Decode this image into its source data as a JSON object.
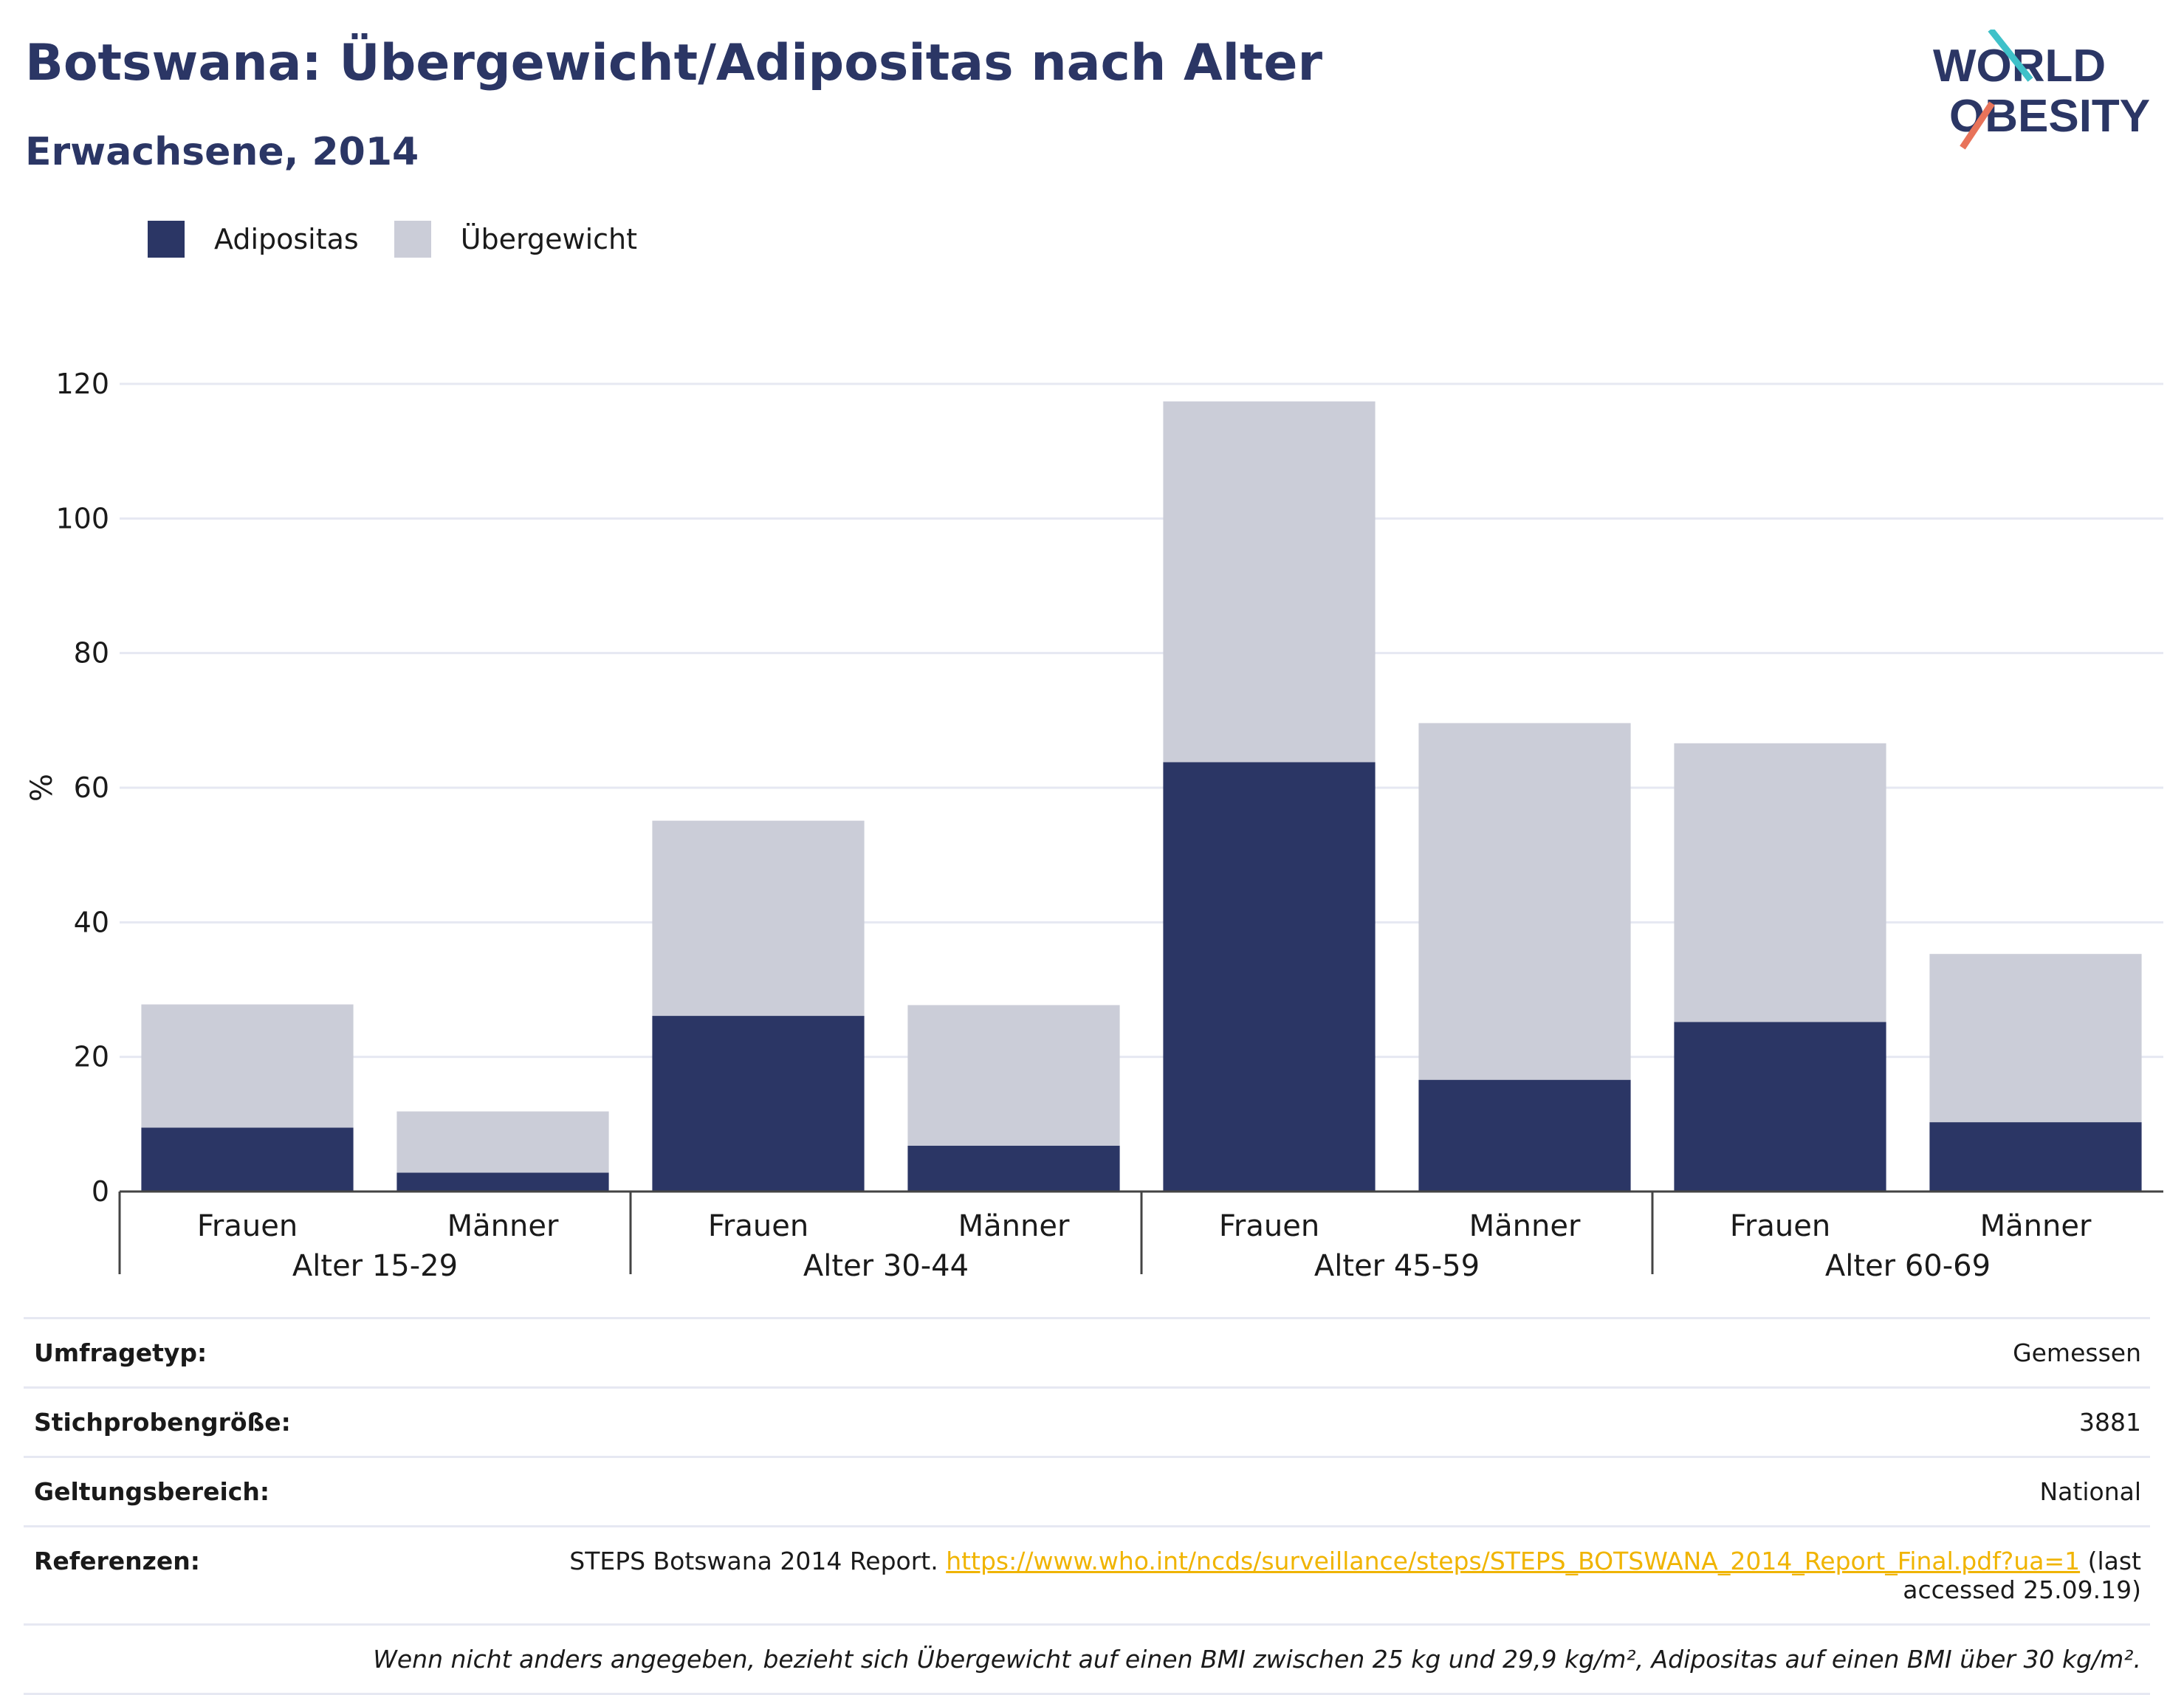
{
  "header": {
    "title": "Botswana: Übergewicht/Adipositas nach Alter",
    "subtitle": "Erwachsene, 2014"
  },
  "logo": {
    "line1": "WORLD",
    "line2": "OBESITY",
    "accent_teal": "#3fc1c9",
    "accent_coral": "#e8735a"
  },
  "legend": [
    {
      "label": "Adipositas",
      "color": "#2b3665"
    },
    {
      "label": "Übergewicht",
      "color": "#cbcdd8"
    }
  ],
  "chart_data": {
    "type": "bar",
    "stacked": true,
    "ylabel": "%",
    "ylim": [
      0,
      120
    ],
    "yticks": [
      0,
      20,
      40,
      60,
      80,
      100,
      120
    ],
    "grid": true,
    "legend_position": "top-left",
    "groups": [
      "Alter 15-29",
      "Alter 30-44",
      "Alter 45-59",
      "Alter 60-69"
    ],
    "categories": [
      "Frauen",
      "Männer",
      "Frauen",
      "Männer",
      "Frauen",
      "Männer",
      "Frauen",
      "Männer"
    ],
    "series": [
      {
        "name": "Adipositas",
        "color": "#2b3665",
        "values": [
          9.5,
          2.8,
          26.1,
          6.8,
          63.8,
          16.6,
          25.2,
          10.3
        ]
      },
      {
        "name": "Übergewicht",
        "color": "#cbcdd8",
        "values": [
          18.3,
          9.1,
          29.0,
          20.9,
          53.6,
          53.0,
          41.4,
          25.0
        ]
      }
    ]
  },
  "meta": {
    "rows": [
      {
        "key": "Umfragetyp:",
        "value": "Gemessen"
      },
      {
        "key": "Stichprobengröße:",
        "value": "3881"
      },
      {
        "key": "Geltungsbereich:",
        "value": "National"
      }
    ],
    "reference_key": "Referenzen:",
    "reference_text": "STEPS Botswana 2014 Report. ",
    "reference_link": "https://www.who.int/ncds/surveillance/steps/STEPS_BOTSWANA_2014_Report_Final.pdf?ua=1",
    "reference_suffix_1": " (last",
    "reference_suffix_2": "accessed 25.09.19)",
    "footnote": "Wenn nicht anders angegeben, bezieht sich Übergewicht auf einen BMI zwischen 25 kg und 29,9 kg/m², Adipositas auf einen BMI über 30 kg/m²."
  }
}
